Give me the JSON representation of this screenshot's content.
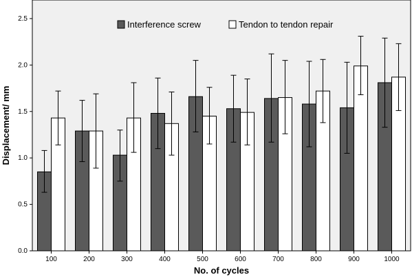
{
  "chart_data": {
    "type": "bar",
    "title": "",
    "xlabel": "No. of cycles",
    "ylabel": "Displacement/ mm",
    "categories": [
      "100",
      "200",
      "300",
      "400",
      "500",
      "600",
      "700",
      "800",
      "900",
      "1000"
    ],
    "ylim": [
      0,
      2.7
    ],
    "yticks": [
      "0.0",
      "0.5",
      "1.0",
      "1.5",
      "2.0",
      "2.5"
    ],
    "grid": false,
    "legend_position": "top",
    "series": [
      {
        "name": "Interference screw",
        "color": "#5a5a5a",
        "values": [
          0.85,
          1.29,
          1.03,
          1.48,
          1.66,
          1.53,
          1.64,
          1.58,
          1.54,
          1.81
        ],
        "err_low": [
          0.63,
          0.96,
          0.75,
          1.1,
          1.28,
          1.17,
          1.17,
          1.12,
          1.05,
          1.33
        ],
        "err_high": [
          1.08,
          1.62,
          1.3,
          1.86,
          2.05,
          1.89,
          2.12,
          2.04,
          2.03,
          2.29
        ]
      },
      {
        "name": "Tendon to tendon repair",
        "color": "#ffffff",
        "values": [
          1.43,
          1.29,
          1.43,
          1.37,
          1.45,
          1.49,
          1.65,
          1.72,
          1.99,
          1.87
        ],
        "err_low": [
          1.14,
          0.89,
          1.06,
          1.03,
          1.15,
          1.14,
          1.26,
          1.38,
          1.68,
          1.51
        ],
        "err_high": [
          1.72,
          1.69,
          1.81,
          1.71,
          1.76,
          1.85,
          2.05,
          2.06,
          2.31,
          2.23
        ]
      }
    ]
  }
}
